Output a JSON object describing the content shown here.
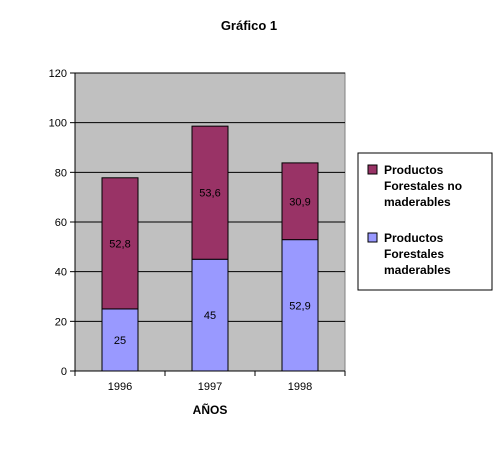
{
  "chart_data": {
    "type": "bar",
    "stacked": true,
    "title": "Gráfico  1",
    "xlabel": "AÑOS",
    "ylabel": "",
    "categories": [
      "1996",
      "1997",
      "1998"
    ],
    "series": [
      {
        "name": "Productos Forestales maderables",
        "values": [
          25,
          45,
          52.9
        ],
        "labels": [
          "25",
          "45",
          "52,9"
        ],
        "color": "#9999ff"
      },
      {
        "name": "Productos Forestales no maderables",
        "values": [
          52.8,
          53.6,
          30.9
        ],
        "labels": [
          "52,8",
          "53,6",
          "30,9"
        ],
        "color": "#993366"
      }
    ],
    "ylim": [
      0,
      120
    ],
    "yticks": [
      0,
      20,
      40,
      60,
      80,
      100,
      120
    ],
    "ytick_labels": [
      "0",
      "20",
      "40",
      "60",
      "80",
      "100",
      "120"
    ],
    "grid": true,
    "plot_background": "#c0c0c0",
    "legend_position": "right",
    "legend": [
      {
        "lines": [
          "Productos",
          "Forestales no",
          "maderables"
        ],
        "color": "#993366"
      },
      {
        "lines": [
          "Productos",
          "Forestales",
          "maderables"
        ],
        "color": "#9999ff"
      }
    ]
  }
}
